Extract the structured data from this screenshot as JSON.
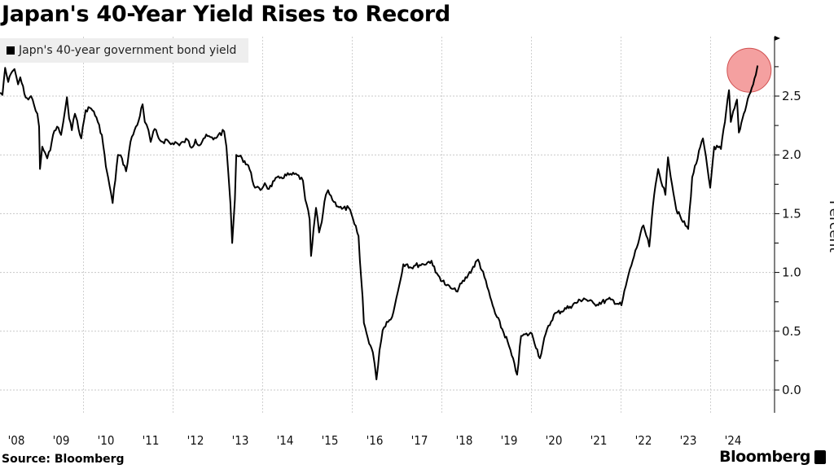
{
  "title": "Japan's 40-Year Yield Rises to Record",
  "source": "Source: Bloomberg",
  "brand": "Bloomberg",
  "chart_data": {
    "type": "line",
    "title": "Japan's 40-Year Yield Rises to Record",
    "xlabel": "",
    "ylabel": "Percent",
    "ylim": [
      -0.2,
      3.0
    ],
    "xlim": [
      2008.0,
      2025.4
    ],
    "yticks": [
      "0.0",
      "0.5",
      "1.0",
      "1.5",
      "2.0",
      "2.5"
    ],
    "xticks": [
      "'08",
      "'09",
      "'10",
      "'11",
      "'12",
      "'13",
      "'14",
      "'15",
      "'16",
      "'17",
      "'18",
      "'19",
      "'20",
      "'21",
      "'22",
      "'23",
      "'24"
    ],
    "grid": true,
    "y_axis_side": "right",
    "legend": {
      "placement": "top-left",
      "entries": [
        "Japn's 40-year government bond yield"
      ]
    },
    "line_color": "#000000",
    "highlight": {
      "x": 2024.86,
      "y": 2.72,
      "color": "#f08080"
    },
    "series": [
      {
        "name": "Japn's 40-year government bond yield",
        "x": [
          2008.14,
          2008.19,
          2008.25,
          2008.32,
          2008.41,
          2008.46,
          2008.54,
          2008.59,
          2008.68,
          2008.77,
          2008.83,
          2008.9,
          2008.97,
          2009.01,
          2009.03,
          2009.08,
          2009.14,
          2009.19,
          2009.26,
          2009.32,
          2009.41,
          2009.5,
          2009.55,
          2009.63,
          2009.68,
          2009.74,
          2009.81,
          2009.86,
          2009.95,
          2010.05,
          2010.14,
          2010.23,
          2010.32,
          2010.41,
          2010.5,
          2010.55,
          2010.65,
          2010.77,
          2010.86,
          2010.95,
          2011.05,
          2011.14,
          2011.23,
          2011.32,
          2011.37,
          2011.45,
          2011.5,
          2011.59,
          2011.68,
          2011.77,
          2011.86,
          2011.95,
          2012.05,
          2012.14,
          2012.23,
          2012.32,
          2012.41,
          2012.5,
          2012.59,
          2012.68,
          2012.77,
          2012.9,
          2013.01,
          2013.14,
          2013.19,
          2013.23,
          2013.28,
          2013.32,
          2013.38,
          2013.41,
          2013.54,
          2013.68,
          2013.83,
          2013.95,
          2014.05,
          2014.14,
          2014.26,
          2014.41,
          2014.59,
          2014.77,
          2014.9,
          2014.95,
          2015.05,
          2015.08,
          2015.19,
          2015.26,
          2015.32,
          2015.41,
          2015.46,
          2015.59,
          2015.77,
          2015.92,
          2016.05,
          2016.14,
          2016.17,
          2016.23,
          2016.26,
          2016.35,
          2016.46,
          2016.54,
          2016.61,
          2016.68,
          2016.77,
          2016.86,
          2016.95,
          2017.05,
          2017.14,
          2017.23,
          2017.32,
          2017.41,
          2017.59,
          2017.77,
          2017.86,
          2017.95,
          2018.1,
          2018.23,
          2018.32,
          2018.59,
          2018.81,
          2018.95,
          2019.08,
          2019.19,
          2019.23,
          2019.47,
          2019.68,
          2019.77,
          2020.01,
          2020.19,
          2020.32,
          2020.5,
          2020.86,
          2021.17,
          2021.41,
          2021.77,
          2022.01,
          2022.14,
          2022.26,
          2022.5,
          2022.63,
          2022.74,
          2022.83,
          2022.99,
          2023.05,
          2023.23,
          2023.35,
          2023.5,
          2023.59,
          2023.83,
          2023.99,
          2024.08,
          2024.23,
          2024.32,
          2024.41,
          2024.45,
          2024.59,
          2024.63,
          2024.74,
          2024.86,
          2024.95,
          2025.01,
          2025.05
        ],
        "y": [
          2.53,
          2.51,
          2.74,
          2.62,
          2.71,
          2.73,
          2.6,
          2.66,
          2.52,
          2.47,
          2.5,
          2.42,
          2.35,
          2.24,
          1.88,
          2.07,
          2.02,
          1.97,
          2.04,
          2.17,
          2.24,
          2.17,
          2.28,
          2.49,
          2.31,
          2.21,
          2.35,
          2.29,
          2.14,
          2.38,
          2.4,
          2.37,
          2.28,
          2.17,
          1.9,
          1.81,
          1.59,
          2.0,
          1.97,
          1.86,
          2.11,
          2.21,
          2.29,
          2.43,
          2.28,
          2.21,
          2.11,
          2.22,
          2.14,
          2.11,
          2.13,
          2.09,
          2.11,
          2.08,
          2.11,
          2.13,
          2.06,
          2.13,
          2.08,
          2.14,
          2.16,
          2.13,
          2.17,
          2.2,
          2.07,
          1.86,
          1.59,
          1.25,
          1.62,
          2.0,
          1.97,
          1.91,
          1.72,
          1.7,
          1.76,
          1.71,
          1.78,
          1.81,
          1.83,
          1.83,
          1.78,
          1.62,
          1.45,
          1.14,
          1.55,
          1.34,
          1.43,
          1.66,
          1.7,
          1.6,
          1.54,
          1.55,
          1.41,
          1.31,
          1.1,
          0.79,
          0.57,
          0.44,
          0.32,
          0.09,
          0.34,
          0.51,
          0.58,
          0.6,
          0.72,
          0.89,
          1.07,
          1.07,
          1.04,
          1.06,
          1.07,
          1.1,
          1.0,
          0.96,
          0.89,
          0.86,
          0.84,
          0.98,
          1.11,
          0.96,
          0.79,
          0.65,
          0.62,
          0.41,
          0.13,
          0.46,
          0.48,
          0.27,
          0.48,
          0.64,
          0.71,
          0.78,
          0.73,
          0.77,
          0.72,
          0.94,
          1.1,
          1.4,
          1.22,
          1.66,
          1.88,
          1.66,
          1.98,
          1.54,
          1.45,
          1.37,
          1.81,
          2.14,
          1.72,
          2.07,
          2.05,
          2.28,
          2.55,
          2.28,
          2.47,
          2.19,
          2.35,
          2.51,
          2.6,
          2.68,
          2.76
        ]
      }
    ]
  }
}
